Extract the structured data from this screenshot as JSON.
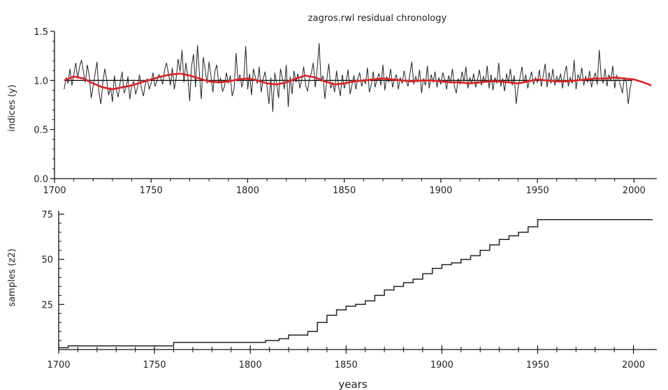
{
  "chart_data": [
    {
      "type": "line",
      "title": "zagros.rwl residual chronology",
      "ylabel": "indices (y)",
      "xlabel": "",
      "xlim": [
        1700,
        2010
      ],
      "ylim": [
        0.0,
        1.5
      ],
      "xticks": [
        "1700",
        "1750",
        "1800",
        "1850",
        "1900",
        "1950",
        "2000"
      ],
      "yticks": [
        "0.0",
        "0.5",
        "1.0",
        "1.5"
      ],
      "reference_line": 1.0,
      "grid": false,
      "colors": {
        "index_series": "#222222",
        "smoothed_series": "#e02020",
        "reference": "#111111"
      },
      "series": [
        {
          "key": "residual_index",
          "x_start": 1705,
          "x_step": 1,
          "values": [
            0.91,
            1.03,
            0.97,
            1.12,
            0.95,
            1.06,
            1.18,
            1.02,
            1.14,
            1.21,
            1.08,
            0.98,
            1.16,
            1.04,
            0.82,
            0.94,
            1.07,
            1.19,
            0.88,
            0.76,
            0.97,
            1.12,
            1.01,
            0.85,
            0.93,
            0.78,
            1.05,
            0.9,
            0.83,
            0.98,
            1.09,
            0.87,
            0.92,
            1.04,
            0.81,
            0.95,
            0.99,
            0.86,
            0.93,
            1.06,
            0.92,
            0.84,
            0.96,
            1.02,
            0.91,
            0.97,
            1.08,
            0.94,
            0.99,
            1.06,
            1.03,
            0.96,
            1.11,
            1.18,
            1.07,
            0.95,
            1.13,
            0.91,
            1.03,
            1.22,
            1.09,
            1.31,
            0.98,
            1.18,
            1.04,
            0.79,
            1.15,
            1.27,
            0.93,
            1.36,
            1.08,
            0.81,
            1.24,
            1.11,
            0.97,
            1.19,
            1.05,
            0.88,
            1.09,
            1.16,
            0.97,
            1.02,
            0.89,
            0.94,
            1.08,
            0.97,
            1.05,
            0.84,
            0.92,
            1.28,
            0.99,
            1.06,
            0.93,
            1.02,
            1.35,
            0.91,
            1.07,
            0.85,
            1.12,
            1.03,
            0.97,
            1.14,
            0.88,
            1.01,
            1.09,
            0.94,
            0.76,
            1.03,
            0.68,
            1.08,
            0.97,
            0.82,
            1.12,
            1.02,
            0.91,
            1.16,
            0.73,
            1.04,
            0.86,
            1.1,
            0.98,
            1.07,
            0.92,
            1.01,
            1.14,
            0.95,
            0.89,
            1.02,
            1.08,
            1.18,
            0.93,
            1.12,
            1.38,
            0.99,
            1.05,
            0.81,
            1.02,
            1.17,
            0.92,
            0.98,
            0.88,
            1.1,
            0.95,
            0.84,
            1.06,
            0.92,
            0.99,
            1.11,
            0.86,
            0.95,
            1.05,
            0.91,
            1.02,
            1.08,
            0.94,
            1.01,
            0.97,
            1.13,
            0.88,
            0.96,
            1.09,
            0.93,
            1.02,
            1.07,
            0.95,
            1.16,
            0.9,
            1.04,
            0.98,
            1.12,
            0.93,
            1.01,
            1.06,
            0.91,
            1.03,
            0.97,
            1.1,
            1.0,
            0.94,
            1.07,
            1.19,
            0.96,
            1.04,
            0.98,
            1.11,
            0.87,
            1.02,
            0.95,
            1.15,
            0.92,
            1.06,
            0.98,
            1.09,
            0.93,
            1.03,
            0.96,
            1.08,
            1.01,
            0.91,
            1.05,
            0.98,
            1.12,
            0.94,
            0.87,
            1.02,
            0.96,
            1.09,
            0.99,
            1.14,
            0.92,
            1.03,
            0.97,
            1.07,
            0.93,
            1.01,
            1.11,
            0.95,
            1.04,
            0.98,
            1.15,
            0.92,
            1.06,
            0.9,
            1.03,
            0.97,
            1.18,
            0.94,
            1.02,
            0.89,
            1.07,
            0.98,
            1.12,
            0.95,
            1.05,
            0.76,
            0.93,
            1.03,
            1.14,
            0.97,
            1.06,
            0.92,
            1.01,
            1.09,
            0.96,
            1.03,
            0.98,
            1.11,
            0.94,
            1.05,
            1.17,
            0.93,
            1.08,
            0.97,
            1.12,
            0.95,
            1.04,
            0.99,
            1.07,
            0.92,
            1.06,
            1.15,
            0.94,
            1.03,
            0.97,
            1.21,
            0.91,
            1.06,
            1.01,
            1.13,
            0.95,
            1.04,
            0.98,
            1.1,
            0.93,
            1.02,
            1.08,
            0.96,
            1.31,
            1.04,
            0.97,
            1.12,
            0.94,
            1.06,
            0.99,
            1.15,
            0.92,
            1.05,
            1.01,
            0.95,
            0.87,
            1.03,
            0.98,
            0.76,
            0.92,
            1.02
          ]
        },
        {
          "key": "smoothed_spline",
          "x": [
            1705,
            1710,
            1715,
            1720,
            1725,
            1730,
            1735,
            1740,
            1745,
            1750,
            1755,
            1760,
            1765,
            1770,
            1775,
            1780,
            1785,
            1790,
            1795,
            1800,
            1805,
            1810,
            1815,
            1820,
            1825,
            1830,
            1835,
            1840,
            1845,
            1850,
            1855,
            1860,
            1865,
            1870,
            1875,
            1880,
            1885,
            1890,
            1895,
            1900,
            1905,
            1910,
            1915,
            1920,
            1925,
            1930,
            1935,
            1940,
            1945,
            1950,
            1955,
            1960,
            1965,
            1970,
            1975,
            1980,
            1985,
            1990,
            1995,
            2000,
            2005,
            2009
          ],
          "values": [
            1.0,
            1.04,
            1.02,
            0.97,
            0.93,
            0.91,
            0.93,
            0.95,
            0.98,
            1.01,
            1.04,
            1.06,
            1.07,
            1.05,
            1.02,
            0.99,
            0.98,
            0.99,
            1.01,
            1.02,
            1.0,
            0.97,
            0.96,
            0.98,
            1.02,
            1.05,
            1.03,
            0.99,
            0.96,
            0.97,
            0.99,
            1.0,
            1.01,
            1.02,
            1.01,
            1.0,
            0.99,
            1.0,
            1.0,
            0.99,
            0.98,
            0.98,
            0.97,
            0.98,
            0.99,
            0.99,
            0.98,
            0.97,
            0.99,
            1.01,
            1.0,
            0.99,
            0.99,
            1.0,
            1.01,
            1.02,
            1.02,
            1.03,
            1.02,
            1.01,
            0.98,
            0.95
          ]
        }
      ]
    },
    {
      "type": "line",
      "title": "",
      "ylabel": "samples (z2)",
      "xlabel": "years",
      "xlim": [
        1700,
        2010
      ],
      "ylim": [
        0,
        75
      ],
      "xticks": [
        "1700",
        "1750",
        "1800",
        "1850",
        "1900",
        "1950",
        "2000"
      ],
      "yticks": [
        "25",
        "50",
        "75"
      ],
      "grid": false,
      "colors": {
        "sample_depth": "#222222"
      },
      "series": [
        {
          "key": "sample_depth",
          "step": true,
          "x": [
            1700,
            1705,
            1760,
            1800,
            1808,
            1815,
            1820,
            1825,
            1830,
            1835,
            1840,
            1845,
            1850,
            1855,
            1860,
            1865,
            1870,
            1875,
            1880,
            1885,
            1890,
            1895,
            1900,
            1905,
            1910,
            1915,
            1920,
            1925,
            1930,
            1935,
            1940,
            1945,
            1950,
            2010
          ],
          "values": [
            1,
            2,
            4,
            4,
            5,
            6,
            8,
            8,
            10,
            15,
            19,
            22,
            24,
            25,
            27,
            30,
            33,
            35,
            37,
            39,
            42,
            45,
            47,
            48,
            50,
            52,
            55,
            58,
            61,
            63,
            65,
            68,
            72,
            72
          ]
        }
      ]
    }
  ]
}
